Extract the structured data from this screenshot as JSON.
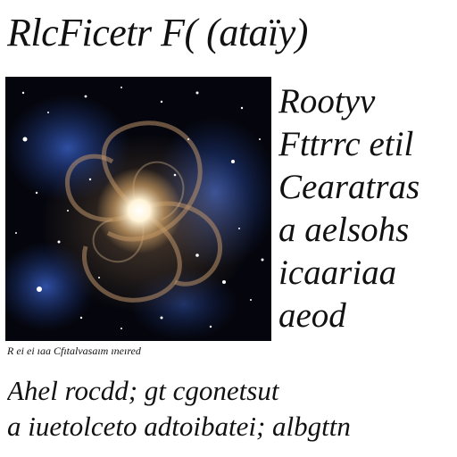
{
  "title": "RlcFicetr F( (ataïy)",
  "figure": {
    "icon": "galaxy-image",
    "colors": {
      "background": "#05060d",
      "core": "#fff4d8",
      "arms": "#9b7a55",
      "nebula": "#1d3b8f"
    }
  },
  "caption": "R ei ei ıaa Cfıtalvasaım ıneıred",
  "side_text": [
    "Rootyv",
    "Fttrrc etil",
    "Cearatras",
    "a aelsohs",
    "icaariaa",
    "aeod"
  ],
  "body_text": [
    "Ahel rocdd; gt cgonetsut",
    "a iuetolceto adtoibatei; albgttn"
  ]
}
